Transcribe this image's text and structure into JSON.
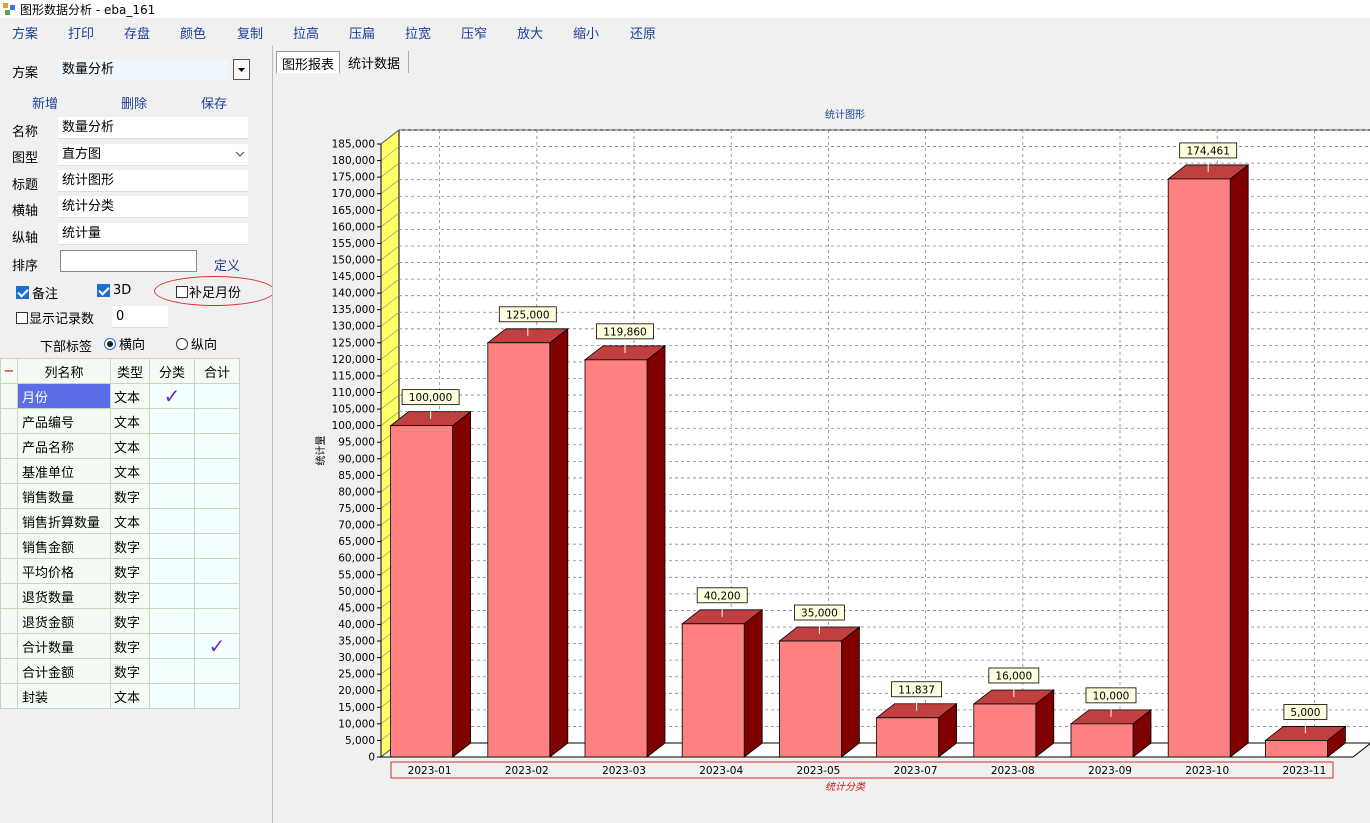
{
  "window": {
    "title": "图形数据分析 - eba_161"
  },
  "menu": [
    "方案",
    "打印",
    "存盘",
    "颜色",
    "复制",
    "拉高",
    "压扁",
    "拉宽",
    "压窄",
    "放大",
    "缩小",
    "还原"
  ],
  "scheme": {
    "label": "方案",
    "value": "数量分析"
  },
  "actions": {
    "add": "新增",
    "delete": "删除",
    "save": "保存"
  },
  "form": {
    "name_label": "名称",
    "name_value": "数量分析",
    "type_label": "图型",
    "type_value": "直方图",
    "title_label": "标题",
    "title_value": "统计图形",
    "xaxis_label": "横轴",
    "xaxis_value": "统计分类",
    "yaxis_label": "纵轴",
    "yaxis_value": "统计量",
    "sort_label": "排序",
    "sort_value": "",
    "define_link": "定义"
  },
  "options": {
    "remark": {
      "label": "备注",
      "checked": true
    },
    "three_d": {
      "label": "3D",
      "checked": true
    },
    "fill_month": {
      "label": "补足月份",
      "checked": false
    },
    "show_count": {
      "label": "显示记录数",
      "checked": false,
      "value": "0"
    },
    "bottom_label": {
      "label": "下部标签",
      "horizontal": "横向",
      "vertical": "纵向",
      "selected": "横向"
    }
  },
  "grid": {
    "collapse": "−",
    "headers": [
      "列名称",
      "类型",
      "分类",
      "合计"
    ],
    "rows": [
      {
        "name": "月份",
        "type": "文本",
        "cat": true,
        "sum": false
      },
      {
        "name": "产品编号",
        "type": "文本",
        "cat": false,
        "sum": false
      },
      {
        "name": "产品名称",
        "type": "文本",
        "cat": false,
        "sum": false
      },
      {
        "name": "基准单位",
        "type": "文本",
        "cat": false,
        "sum": false
      },
      {
        "name": "销售数量",
        "type": "数字",
        "cat": false,
        "sum": false
      },
      {
        "name": "销售折算数量",
        "type": "文本",
        "cat": false,
        "sum": false
      },
      {
        "name": "销售金额",
        "type": "数字",
        "cat": false,
        "sum": false
      },
      {
        "name": "平均价格",
        "type": "数字",
        "cat": false,
        "sum": false
      },
      {
        "name": "退货数量",
        "type": "数字",
        "cat": false,
        "sum": false
      },
      {
        "name": "退货金额",
        "type": "数字",
        "cat": false,
        "sum": false
      },
      {
        "name": "合计数量",
        "type": "数字",
        "cat": false,
        "sum": true
      },
      {
        "name": "合计金额",
        "type": "数字",
        "cat": false,
        "sum": false
      },
      {
        "name": "封装",
        "type": "文本",
        "cat": false,
        "sum": false
      }
    ]
  },
  "tabs": [
    "图形报表",
    "统计数据"
  ],
  "colors": {
    "bar_front": "#ff8080",
    "bar_top": "#c04040",
    "bar_side": "#800000",
    "wall": "#ffff66",
    "accent": "#1a3f99"
  },
  "chart_data": {
    "type": "bar",
    "title": "统计图形",
    "xlabel": "统计分类",
    "ylabel": "统计量",
    "categories": [
      "2023-01",
      "2023-02",
      "2023-03",
      "2023-04",
      "2023-05",
      "2023-07",
      "2023-08",
      "2023-09",
      "2023-10",
      "2023-11"
    ],
    "values": [
      100000,
      125000,
      119860,
      40200,
      35000,
      11837,
      16000,
      10000,
      174461,
      5000
    ],
    "value_labels": [
      "100,000",
      "125,000",
      "119,860",
      "40,200",
      "35,000",
      "11,837",
      "16,000",
      "10,000",
      "174,461",
      "5,000"
    ],
    "ylim": [
      0,
      185000
    ],
    "ytick_step": 5000,
    "grid": true,
    "three_d": true
  }
}
